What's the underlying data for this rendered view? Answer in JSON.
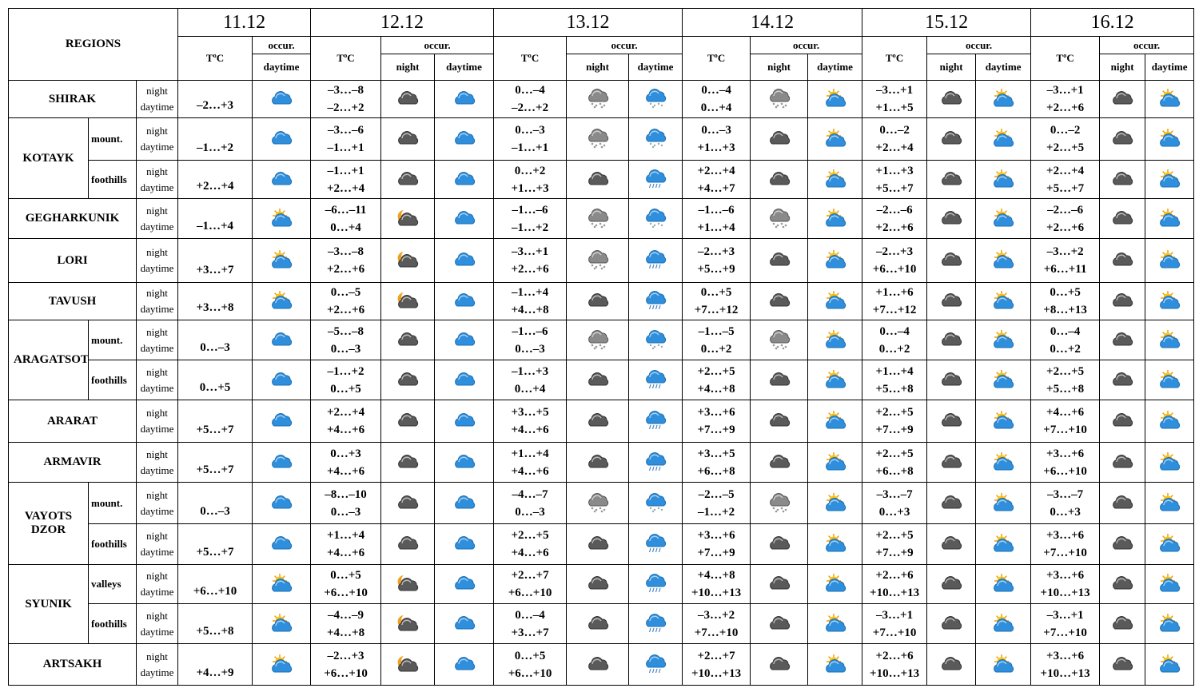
{
  "header": {
    "regions": "REGIONS",
    "dates": [
      "11.12",
      "12.12",
      "13.12",
      "14.12",
      "15.12",
      "16.12"
    ],
    "t": "TºC",
    "occur": "occur.",
    "night": "night",
    "daytime": "daytime"
  },
  "regions": [
    {
      "name": "SHIRAK",
      "rows": [
        {
          "t0": "–2…+3",
          "t": [
            [
              "–3…–8",
              "–2…+2"
            ],
            [
              "0…–4",
              "–2…+2"
            ],
            [
              "0…–4",
              "0…+4"
            ],
            [
              "–3…+1",
              "+1…+5"
            ],
            [
              "–3…+1",
              "+2…+6"
            ]
          ]
        }
      ]
    },
    {
      "name": "KOTAYK",
      "rows": [
        {
          "sub": "mount.",
          "t0": "–1…+2",
          "t": [
            [
              "–3…–6",
              "–1…+1"
            ],
            [
              "0…–3",
              "–1…+1"
            ],
            [
              "0…–3",
              "+1…+3"
            ],
            [
              "0…–2",
              "+2…+4"
            ],
            [
              "0…–2",
              "+2…+5"
            ]
          ]
        },
        {
          "sub": "foothills",
          "t0": "+2…+4",
          "t": [
            [
              "–1…+1",
              "+2…+4"
            ],
            [
              "0…+2",
              "+1…+3"
            ],
            [
              "+2…+4",
              "+4…+7"
            ],
            [
              "+1…+3",
              "+5…+7"
            ],
            [
              "+2…+4",
              "+5…+7"
            ]
          ]
        }
      ]
    },
    {
      "name": "GEGHARKUNIK",
      "rows": [
        {
          "t0": "–1…+4",
          "t": [
            [
              "–6…–11",
              "0…+4"
            ],
            [
              "–1…–6",
              "–1…+2"
            ],
            [
              "–1…–6",
              "+1…+4"
            ],
            [
              "–2…–6",
              "+2…+6"
            ],
            [
              "–2…–6",
              "+2…+6"
            ]
          ]
        }
      ]
    },
    {
      "name": "LORI",
      "rows": [
        {
          "t0": "+3…+7",
          "t": [
            [
              "–3…–8",
              "+2…+6"
            ],
            [
              "–3…+1",
              "+2…+6"
            ],
            [
              "–2…+3",
              "+5…+9"
            ],
            [
              "–2…+3",
              "+6…+10"
            ],
            [
              "–3…+2",
              "+6…+11"
            ]
          ]
        }
      ]
    },
    {
      "name": "TAVUSH",
      "rows": [
        {
          "t0": "+3…+8",
          "t": [
            [
              "0…–5",
              "+2…+6"
            ],
            [
              "–1…+4",
              "+4…+8"
            ],
            [
              "0…+5",
              "+7…+12"
            ],
            [
              "+1…+6",
              "+7…+12"
            ],
            [
              "0…+5",
              "+8…+13"
            ]
          ]
        }
      ]
    },
    {
      "name": "ARAGATSOTN",
      "rows": [
        {
          "sub": "mount.",
          "t0": "0…–3",
          "t": [
            [
              "–5…–8",
              "0…–3"
            ],
            [
              "–1…–6",
              "0…–3"
            ],
            [
              "–1…–5",
              "0…+2"
            ],
            [
              "0…–4",
              "0…+2"
            ],
            [
              "0…–4",
              "0…+2"
            ]
          ]
        },
        {
          "sub": "foothills",
          "t0": "0…+5",
          "t": [
            [
              "–1…+2",
              "0…+5"
            ],
            [
              "–1…+3",
              "0…+4"
            ],
            [
              "+2…+5",
              "+4…+8"
            ],
            [
              "+1…+4",
              "+5…+8"
            ],
            [
              "+2…+5",
              "+5…+8"
            ]
          ]
        }
      ]
    },
    {
      "name": "ARARAT",
      "rows": [
        {
          "t0": "+5…+7",
          "t": [
            [
              "+2…+4",
              "+4…+6"
            ],
            [
              "+3…+5",
              "+4…+6"
            ],
            [
              "+3…+6",
              "+7…+9"
            ],
            [
              "+2…+5",
              "+7…+9"
            ],
            [
              "+4…+6",
              "+7…+10"
            ]
          ]
        }
      ]
    },
    {
      "name": "ARMAVIR",
      "rows": [
        {
          "t0": "+5…+7",
          "t": [
            [
              "0…+3",
              "+4…+6"
            ],
            [
              "+1…+4",
              "+4…+6"
            ],
            [
              "+3…+5",
              "+6…+8"
            ],
            [
              "+2…+5",
              "+6…+8"
            ],
            [
              "+3…+6",
              "+6…+10"
            ]
          ]
        }
      ]
    },
    {
      "name": "VAYOTS DZOR",
      "rows": [
        {
          "sub": "mount.",
          "t0": "0…–3",
          "t": [
            [
              "–8…–10",
              "0…–3"
            ],
            [
              "–4…–7",
              "0…–3"
            ],
            [
              "–2…–5",
              "–1…+2"
            ],
            [
              "–3…–7",
              "0…+3"
            ],
            [
              "–3…–7",
              "0…+3"
            ]
          ]
        },
        {
          "sub": "foothills",
          "t0": "+5…+7",
          "t": [
            [
              "+1…+4",
              "+4…+6"
            ],
            [
              "+2…+5",
              "+4…+6"
            ],
            [
              "+3…+6",
              "+7…+9"
            ],
            [
              "+2…+5",
              "+7…+9"
            ],
            [
              "+3…+6",
              "+7…+10"
            ]
          ]
        }
      ]
    },
    {
      "name": "SYUNIK",
      "rows": [
        {
          "sub": "valleys",
          "t0": "+6…+10",
          "t": [
            [
              "0…+5",
              "+6…+10"
            ],
            [
              "+2…+7",
              "+6…+10"
            ],
            [
              "+4…+8",
              "+10…+13"
            ],
            [
              "+2…+6",
              "+10…+13"
            ],
            [
              "+3…+6",
              "+10…+13"
            ]
          ]
        },
        {
          "sub": "foothills",
          "t0": "+5…+8",
          "t": [
            [
              "–4…–9",
              "+4…+8"
            ],
            [
              "0…–4",
              "+3…+7"
            ],
            [
              "–3…+2",
              "+7…+10"
            ],
            [
              "–3…+1",
              "+7…+10"
            ],
            [
              "–3…+1",
              "+7…+10"
            ]
          ]
        }
      ]
    },
    {
      "name": "ARTSAKH",
      "rows": [
        {
          "t0": "+4…+9",
          "t": [
            [
              "–2…+3",
              "+6…+10"
            ],
            [
              "0…+5",
              "+6…+10"
            ],
            [
              "+2…+7",
              "+10…+13"
            ],
            [
              "+2…+6",
              "+10…+13"
            ],
            [
              "+3…+6",
              "+10…+13"
            ]
          ]
        }
      ]
    }
  ]
}
